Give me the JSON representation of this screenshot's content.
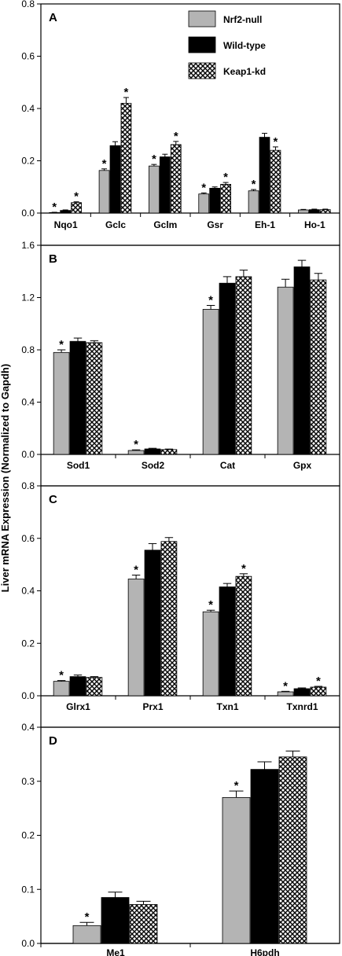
{
  "ylabel": "Liver mRNA Expression (Normalized to Gapdh)",
  "legend": [
    {
      "label": "Nrf2-null",
      "pattern": "gray"
    },
    {
      "label": "Wild-type",
      "pattern": "black"
    },
    {
      "label": "Keap1-kd",
      "pattern": "crosshatch"
    }
  ],
  "colors": {
    "nrf2_null": "#b4b4b4",
    "wild_type": "#000000",
    "keap1_kd": "crosshatch"
  },
  "chart_data": [
    {
      "panel": "A",
      "type": "bar",
      "ylim": [
        0,
        0.8
      ],
      "yticks": [
        "0.0",
        "0.2",
        "0.4",
        "0.6",
        "0.8"
      ],
      "categories": [
        "Nqo1",
        "Gclc",
        "Gclm",
        "Gsr",
        "Eh-1",
        "Ho-1"
      ],
      "series": [
        {
          "name": "Nrf2-null",
          "values": [
            0.002,
            0.163,
            0.18,
            0.073,
            0.085,
            0.012
          ],
          "errors": [
            0.001,
            0.006,
            0.006,
            0.004,
            0.005,
            0.002
          ],
          "sig": [
            true,
            true,
            true,
            true,
            true,
            false
          ]
        },
        {
          "name": "Wild-type",
          "values": [
            0.01,
            0.258,
            0.215,
            0.095,
            0.29,
            0.013
          ],
          "errors": [
            0.002,
            0.015,
            0.01,
            0.005,
            0.015,
            0.002
          ],
          "sig": [
            false,
            false,
            false,
            false,
            false,
            false
          ]
        },
        {
          "name": "Keap1-kd",
          "values": [
            0.04,
            0.42,
            0.262,
            0.11,
            0.24,
            0.013
          ],
          "errors": [
            0.003,
            0.022,
            0.012,
            0.007,
            0.013,
            0.002
          ],
          "sig": [
            true,
            true,
            true,
            true,
            true,
            false
          ]
        }
      ]
    },
    {
      "panel": "B",
      "type": "bar",
      "ylim": [
        0,
        1.6
      ],
      "yticks": [
        "0.0",
        "0.4",
        "0.8",
        "1.2",
        "1.6"
      ],
      "categories": [
        "Sod1",
        "Sod2",
        "Cat",
        "Gpx"
      ],
      "series": [
        {
          "name": "Nrf2-null",
          "values": [
            0.78,
            0.03,
            1.11,
            1.28
          ],
          "errors": [
            0.02,
            0.005,
            0.03,
            0.06
          ],
          "sig": [
            true,
            true,
            true,
            false
          ]
        },
        {
          "name": "Wild-type",
          "values": [
            0.865,
            0.042,
            1.31,
            1.435
          ],
          "errors": [
            0.025,
            0.005,
            0.05,
            0.05
          ],
          "sig": [
            false,
            false,
            false,
            false
          ]
        },
        {
          "name": "Keap1-kd",
          "values": [
            0.855,
            0.037,
            1.36,
            1.335
          ],
          "errors": [
            0.015,
            0.004,
            0.05,
            0.05
          ],
          "sig": [
            false,
            false,
            false,
            false
          ]
        }
      ]
    },
    {
      "panel": "C",
      "type": "bar",
      "ylim": [
        0,
        0.8
      ],
      "yticks": [
        "0.0",
        "0.2",
        "0.4",
        "0.6",
        "0.8"
      ],
      "categories": [
        "Glrx1",
        "Prx1",
        "Txn1",
        "Txnrd1"
      ],
      "series": [
        {
          "name": "Nrf2-null",
          "values": [
            0.055,
            0.445,
            0.32,
            0.015
          ],
          "errors": [
            0.003,
            0.015,
            0.006,
            0.002
          ],
          "sig": [
            true,
            true,
            true,
            true
          ]
        },
        {
          "name": "Wild-type",
          "values": [
            0.073,
            0.555,
            0.415,
            0.027
          ],
          "errors": [
            0.006,
            0.025,
            0.013,
            0.003
          ],
          "sig": [
            false,
            false,
            false,
            false
          ]
        },
        {
          "name": "Keap1-kd",
          "values": [
            0.07,
            0.588,
            0.455,
            0.033
          ],
          "errors": [
            0.003,
            0.015,
            0.01,
            0.003
          ],
          "sig": [
            false,
            false,
            true,
            true
          ]
        }
      ]
    },
    {
      "panel": "D",
      "type": "bar",
      "ylim": [
        0,
        0.4
      ],
      "yticks": [
        "0.0",
        "0.1",
        "0.2",
        "0.3",
        "0.4"
      ],
      "categories": [
        "Me1",
        "H6pdh"
      ],
      "series": [
        {
          "name": "Nrf2-null",
          "values": [
            0.033,
            0.27
          ],
          "errors": [
            0.006,
            0.012
          ],
          "sig": [
            true,
            true
          ]
        },
        {
          "name": "Wild-type",
          "values": [
            0.085,
            0.322
          ],
          "errors": [
            0.01,
            0.014
          ],
          "sig": [
            false,
            false
          ]
        },
        {
          "name": "Keap1-kd",
          "values": [
            0.072,
            0.345
          ],
          "errors": [
            0.006,
            0.011
          ],
          "sig": [
            false,
            false
          ]
        }
      ]
    }
  ]
}
